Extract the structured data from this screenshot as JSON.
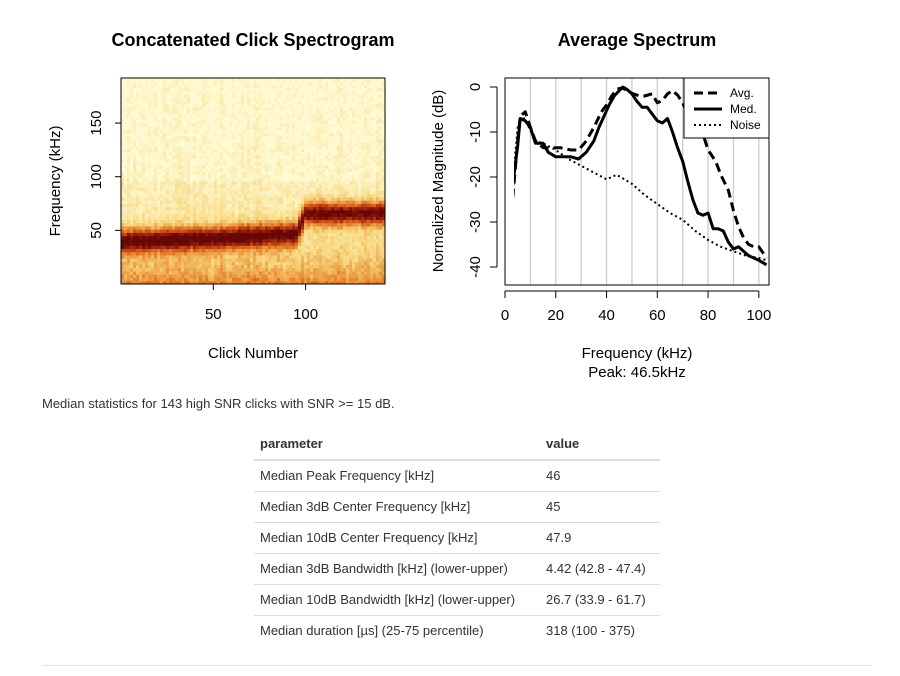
{
  "chart_data": [
    {
      "type": "heatmap",
      "title": "Concatenated Click Spectrogram",
      "xlabel": "Click Number",
      "ylabel": "Frequency (kHz)",
      "xlim": [
        0,
        143
      ],
      "ylim": [
        0,
        192
      ],
      "xticks": [
        "50",
        "100"
      ],
      "yticks": [
        "50",
        "100",
        "150"
      ],
      "band_center_khz": [
        {
          "click": 1,
          "freq": 40
        },
        {
          "click": 50,
          "freq": 43
        },
        {
          "click": 95,
          "freq": 47
        },
        {
          "click": 100,
          "freq": 66
        },
        {
          "click": 143,
          "freq": 66
        }
      ]
    },
    {
      "type": "line",
      "title": "Average Spectrum",
      "xlabel": "Frequency (kHz)",
      "subtitle": "Peak: 46.5kHz",
      "ylabel": "Normalized Magnitude (dB)",
      "xlim": [
        0,
        104
      ],
      "ylim": [
        -44,
        2
      ],
      "xticks": [
        "0",
        "20",
        "40",
        "60",
        "80",
        "100"
      ],
      "yticks": [
        "0",
        "-10",
        "-20",
        "-30",
        "-40"
      ],
      "grid": "vertical every 10 kHz",
      "legend_position": "top-right",
      "legend": [
        "Avg.",
        "Med.",
        "Noise"
      ],
      "series": [
        {
          "name": "Avg.",
          "style": "dashed",
          "x": [
            2,
            3,
            5,
            6,
            8,
            10,
            12,
            15,
            18,
            22,
            26,
            29,
            32,
            35,
            38,
            40,
            42,
            44,
            46,
            48,
            50,
            53,
            55,
            58,
            60,
            62,
            64,
            66,
            68,
            70,
            73,
            75,
            78,
            80,
            83,
            85,
            88,
            90,
            92,
            94,
            96,
            98,
            100,
            103
          ],
          "y": [
            -37,
            -25,
            -12,
            -6.5,
            -5.5,
            -9,
            -12,
            -13.5,
            -13.5,
            -13.5,
            -14,
            -14,
            -12,
            -9,
            -5.5,
            -4,
            -2,
            -0.5,
            -0.2,
            -0.7,
            -1.4,
            -2,
            -2,
            -1.5,
            -3.5,
            -3,
            -1.5,
            -0.8,
            -1.8,
            -3.5,
            -7.5,
            -8.2,
            -10.5,
            -14,
            -16.5,
            -19.5,
            -23,
            -27.5,
            -31,
            -33.5,
            -35,
            -35.5,
            -35.5,
            -38
          ]
        },
        {
          "name": "Med.",
          "style": "solid",
          "x": [
            2,
            3,
            5,
            6,
            8,
            10,
            12,
            15,
            17,
            20,
            23,
            26,
            29,
            32,
            35,
            37,
            39,
            41,
            43,
            45,
            46.5,
            48,
            50,
            52,
            54,
            56,
            58,
            60,
            62,
            64,
            66,
            68,
            70,
            72,
            74,
            76,
            78,
            80,
            82,
            84,
            86,
            88,
            90,
            92,
            94,
            96,
            98,
            100,
            103
          ],
          "y": [
            -37,
            -22,
            -13,
            -7,
            -7.5,
            -9,
            -12.5,
            -12.5,
            -14.5,
            -15.5,
            -15.5,
            -15.5,
            -16,
            -14.5,
            -12,
            -9,
            -6.5,
            -4,
            -2,
            -0.8,
            0,
            -0.5,
            -1.5,
            -3.2,
            -4.5,
            -4.5,
            -6,
            -7.5,
            -8,
            -7,
            -10,
            -13.5,
            -16.5,
            -21,
            -25,
            -28,
            -28.5,
            -28,
            -31.5,
            -31.5,
            -32,
            -34.5,
            -36,
            -35.5,
            -36.5,
            -37.5,
            -38,
            -38.5,
            -39.5
          ]
        },
        {
          "name": "Noise",
          "style": "dotted",
          "x": [
            2,
            3,
            5,
            7,
            9,
            12,
            15,
            20,
            25,
            30,
            35,
            40,
            44,
            47,
            50,
            55,
            60,
            65,
            70,
            75,
            80,
            85,
            90,
            95,
            100,
            103
          ],
          "y": [
            -37,
            -21,
            -9,
            -6.5,
            -8.5,
            -12,
            -12.5,
            -14,
            -16,
            -17.5,
            -19,
            -20.5,
            -19.5,
            -20.5,
            -21.5,
            -24,
            -26,
            -28,
            -29.5,
            -32,
            -34,
            -35.5,
            -36.5,
            -37.5,
            -38,
            -38.5
          ]
        }
      ]
    }
  ],
  "caption": "Median statistics for 143 high SNR clicks with SNR >= 15 dB.",
  "table": {
    "headers": [
      "parameter",
      "value"
    ],
    "rows": [
      [
        "Median Peak Frequency [kHz]",
        "46"
      ],
      [
        "Median 3dB Center Frequency [kHz]",
        "45"
      ],
      [
        "Median 10dB Center Frequency [kHz]",
        "47.9"
      ],
      [
        "Median 3dB Bandwidth [kHz] (lower-upper)",
        "4.42 (42.8 - 47.4)"
      ],
      [
        "Median 10dB Bandwidth [kHz] (lower-upper)",
        "26.7 (33.9 - 61.7)"
      ],
      [
        "Median duration [µs] (25-75 percentile)",
        "318 (100 - 375)"
      ]
    ]
  }
}
